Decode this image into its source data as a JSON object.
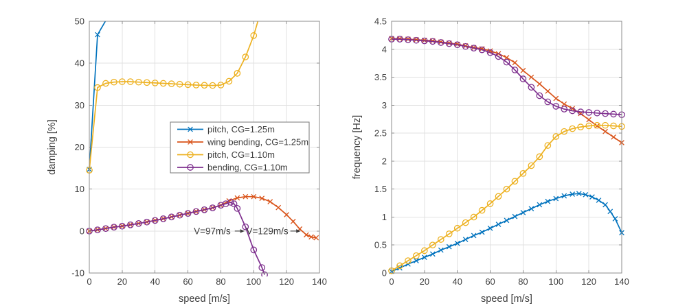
{
  "figure": {
    "background": "#ffffff",
    "axis_color": "#8c8c8c",
    "grid_color": "#e0e0e0",
    "text_color": "#3d3d3d",
    "annotation_color": "#3f3f3f",
    "legend_border_color": "#777777"
  },
  "chart_data": [
    {
      "type": "line",
      "name": "damping-vs-speed",
      "title": "",
      "xlabel": "speed [m/s]",
      "ylabel": "damping [%]",
      "xlim": [
        0,
        140
      ],
      "ylim": [
        -10,
        50
      ],
      "xticks": [
        0,
        20,
        40,
        60,
        80,
        100,
        120,
        140
      ],
      "yticks": [
        -10,
        0,
        10,
        20,
        30,
        40,
        50
      ],
      "grid": true,
      "legend": {
        "visible": true,
        "position": "inside-middle-left",
        "entries": [
          "pitch, CG=1.25m",
          "wing bending, CG=1.25m",
          "pitch, CG=1.10m",
          "bending, CG=1.10m"
        ]
      },
      "series": [
        {
          "name": "pitch, CG=1.25m",
          "color": "#0072BD",
          "marker": "x",
          "points": [
            [
              0,
              14.7
            ],
            [
              5,
              46.8
            ],
            [
              12,
              51.5
            ]
          ]
        },
        {
          "name": "wing bending, CG=1.25m",
          "color": "#D95319",
          "marker": "x",
          "points": [
            [
              0,
              0.02
            ],
            [
              5,
              0.3
            ],
            [
              10,
              0.62
            ],
            [
              15,
              0.95
            ],
            [
              20,
              1.18
            ],
            [
              25,
              1.5
            ],
            [
              30,
              1.82
            ],
            [
              35,
              2.16
            ],
            [
              40,
              2.55
            ],
            [
              45,
              2.95
            ],
            [
              50,
              3.38
            ],
            [
              55,
              3.8
            ],
            [
              60,
              4.22
            ],
            [
              65,
              4.68
            ],
            [
              70,
              5.1
            ],
            [
              75,
              5.55
            ],
            [
              80,
              6.15
            ],
            [
              85,
              7.2
            ],
            [
              90,
              7.9
            ],
            [
              95,
              8.2
            ],
            [
              100,
              8.2
            ],
            [
              105,
              7.8
            ],
            [
              110,
              7.0
            ],
            [
              115,
              5.6
            ],
            [
              120,
              3.9
            ],
            [
              124,
              2.3
            ],
            [
              128,
              0.5
            ],
            [
              132,
              -0.9
            ],
            [
              135,
              -1.4
            ],
            [
              138,
              -1.6
            ]
          ]
        },
        {
          "name": "pitch, CG=1.10m",
          "color": "#EDB120",
          "marker": "o",
          "points": [
            [
              0,
              14.5
            ],
            [
              5,
              34.2
            ],
            [
              10,
              35.2
            ],
            [
              15,
              35.5
            ],
            [
              20,
              35.6
            ],
            [
              25,
              35.6
            ],
            [
              30,
              35.5
            ],
            [
              35,
              35.4
            ],
            [
              40,
              35.3
            ],
            [
              45,
              35.2
            ],
            [
              50,
              35.1
            ],
            [
              55,
              35.0
            ],
            [
              60,
              34.9
            ],
            [
              65,
              34.8
            ],
            [
              70,
              34.75
            ],
            [
              75,
              34.7
            ],
            [
              80,
              34.8
            ],
            [
              85,
              35.7
            ],
            [
              90,
              37.6
            ],
            [
              95,
              41.5
            ],
            [
              100,
              46.6
            ],
            [
              104,
              52
            ]
          ]
        },
        {
          "name": "bending, CG=1.10m",
          "color": "#7E2F8E",
          "marker": "o",
          "points": [
            [
              0,
              0.0
            ],
            [
              5,
              0.28
            ],
            [
              10,
              0.6
            ],
            [
              15,
              0.93
            ],
            [
              20,
              1.16
            ],
            [
              25,
              1.48
            ],
            [
              30,
              1.8
            ],
            [
              35,
              2.14
            ],
            [
              40,
              2.53
            ],
            [
              45,
              2.93
            ],
            [
              50,
              3.36
            ],
            [
              55,
              3.78
            ],
            [
              60,
              4.2
            ],
            [
              65,
              4.66
            ],
            [
              70,
              5.08
            ],
            [
              75,
              5.53
            ],
            [
              80,
              6.15
            ],
            [
              83,
              6.5
            ],
            [
              86,
              6.85
            ],
            [
              88,
              6.5
            ],
            [
              90,
              5.4
            ],
            [
              95,
              1.0
            ],
            [
              100,
              -4.5
            ],
            [
              105,
              -8.7
            ],
            [
              106.6,
              -10.4
            ]
          ]
        }
      ],
      "annotations": [
        {
          "text": "V=97m/s",
          "align": "end",
          "text_x": 86,
          "y": 0,
          "arrow_x1": 88.5,
          "arrow_x2": 94.5
        },
        {
          "text": "V=129m/s",
          "align": "start",
          "text_x": 95.5,
          "y": 0,
          "arrow_x1": 122.3,
          "arrow_x2": 128.6
        }
      ]
    },
    {
      "type": "line",
      "name": "frequency-vs-speed",
      "title": "",
      "xlabel": "speed [m/s]",
      "ylabel": "frequency [Hz]",
      "xlim": [
        0,
        140
      ],
      "ylim": [
        0,
        4.5
      ],
      "xticks": [
        0,
        20,
        40,
        60,
        80,
        100,
        120,
        140
      ],
      "yticks": [
        0,
        0.5,
        1,
        1.5,
        2,
        2.5,
        3,
        3.5,
        4,
        4.5
      ],
      "grid": true,
      "legend": {
        "visible": false,
        "position": "",
        "entries": []
      },
      "series": [
        {
          "name": "pitch, CG=1.25m",
          "color": "#0072BD",
          "marker": "x",
          "points": [
            [
              0,
              0.03
            ],
            [
              5,
              0.09
            ],
            [
              10,
              0.16
            ],
            [
              15,
              0.22
            ],
            [
              20,
              0.28
            ],
            [
              25,
              0.34
            ],
            [
              30,
              0.41
            ],
            [
              35,
              0.47
            ],
            [
              40,
              0.53
            ],
            [
              45,
              0.6
            ],
            [
              50,
              0.67
            ],
            [
              55,
              0.73
            ],
            [
              60,
              0.8
            ],
            [
              65,
              0.87
            ],
            [
              70,
              0.94
            ],
            [
              75,
              1.01
            ],
            [
              80,
              1.08
            ],
            [
              85,
              1.15
            ],
            [
              90,
              1.22
            ],
            [
              95,
              1.28
            ],
            [
              100,
              1.33
            ],
            [
              105,
              1.38
            ],
            [
              110,
              1.41
            ],
            [
              114,
              1.42
            ],
            [
              118,
              1.4
            ],
            [
              122,
              1.36
            ],
            [
              126,
              1.3
            ],
            [
              130,
              1.22
            ],
            [
              133,
              1.1
            ],
            [
              136,
              0.97
            ],
            [
              140,
              0.72
            ]
          ]
        },
        {
          "name": "wing bending, CG=1.25m",
          "color": "#D95319",
          "marker": "x",
          "points": [
            [
              0,
              4.19
            ],
            [
              5,
              4.19
            ],
            [
              10,
              4.18
            ],
            [
              15,
              4.17
            ],
            [
              20,
              4.16
            ],
            [
              25,
              4.15
            ],
            [
              30,
              4.13
            ],
            [
              35,
              4.11
            ],
            [
              40,
              4.09
            ],
            [
              45,
              4.06
            ],
            [
              50,
              4.03
            ],
            [
              55,
              4.01
            ],
            [
              60,
              3.97
            ],
            [
              65,
              3.92
            ],
            [
              70,
              3.85
            ],
            [
              75,
              3.76
            ],
            [
              80,
              3.62
            ],
            [
              85,
              3.5
            ],
            [
              90,
              3.38
            ],
            [
              95,
              3.25
            ],
            [
              100,
              3.12
            ],
            [
              105,
              3.02
            ],
            [
              110,
              2.94
            ],
            [
              115,
              2.85
            ],
            [
              120,
              2.74
            ],
            [
              125,
              2.63
            ],
            [
              130,
              2.53
            ],
            [
              135,
              2.43
            ],
            [
              140,
              2.33
            ]
          ]
        },
        {
          "name": "pitch, CG=1.10m",
          "color": "#EDB120",
          "marker": "o",
          "points": [
            [
              0,
              0.04
            ],
            [
              5,
              0.13
            ],
            [
              10,
              0.22
            ],
            [
              15,
              0.31
            ],
            [
              20,
              0.4
            ],
            [
              25,
              0.5
            ],
            [
              30,
              0.6
            ],
            [
              35,
              0.7
            ],
            [
              40,
              0.8
            ],
            [
              45,
              0.9
            ],
            [
              50,
              1.0
            ],
            [
              55,
              1.12
            ],
            [
              60,
              1.24
            ],
            [
              65,
              1.37
            ],
            [
              70,
              1.5
            ],
            [
              75,
              1.64
            ],
            [
              80,
              1.78
            ],
            [
              85,
              1.92
            ],
            [
              90,
              2.08
            ],
            [
              95,
              2.28
            ],
            [
              100,
              2.44
            ],
            [
              105,
              2.53
            ],
            [
              110,
              2.58
            ],
            [
              115,
              2.61
            ],
            [
              120,
              2.63
            ],
            [
              125,
              2.64
            ],
            [
              130,
              2.64
            ],
            [
              135,
              2.63
            ],
            [
              140,
              2.62
            ]
          ]
        },
        {
          "name": "bending, CG=1.10m",
          "color": "#7E2F8E",
          "marker": "o",
          "points": [
            [
              0,
              4.18
            ],
            [
              5,
              4.18
            ],
            [
              10,
              4.17
            ],
            [
              15,
              4.16
            ],
            [
              20,
              4.15
            ],
            [
              25,
              4.14
            ],
            [
              30,
              4.12
            ],
            [
              35,
              4.1
            ],
            [
              40,
              4.08
            ],
            [
              45,
              4.05
            ],
            [
              50,
              4.02
            ],
            [
              55,
              3.99
            ],
            [
              60,
              3.94
            ],
            [
              65,
              3.87
            ],
            [
              70,
              3.77
            ],
            [
              75,
              3.63
            ],
            [
              80,
              3.47
            ],
            [
              85,
              3.32
            ],
            [
              90,
              3.17
            ],
            [
              95,
              3.06
            ],
            [
              100,
              2.98
            ],
            [
              105,
              2.93
            ],
            [
              110,
              2.9
            ],
            [
              115,
              2.88
            ],
            [
              120,
              2.87
            ],
            [
              125,
              2.86
            ],
            [
              130,
              2.85
            ],
            [
              135,
              2.84
            ],
            [
              140,
              2.83
            ]
          ]
        }
      ],
      "annotations": []
    }
  ]
}
